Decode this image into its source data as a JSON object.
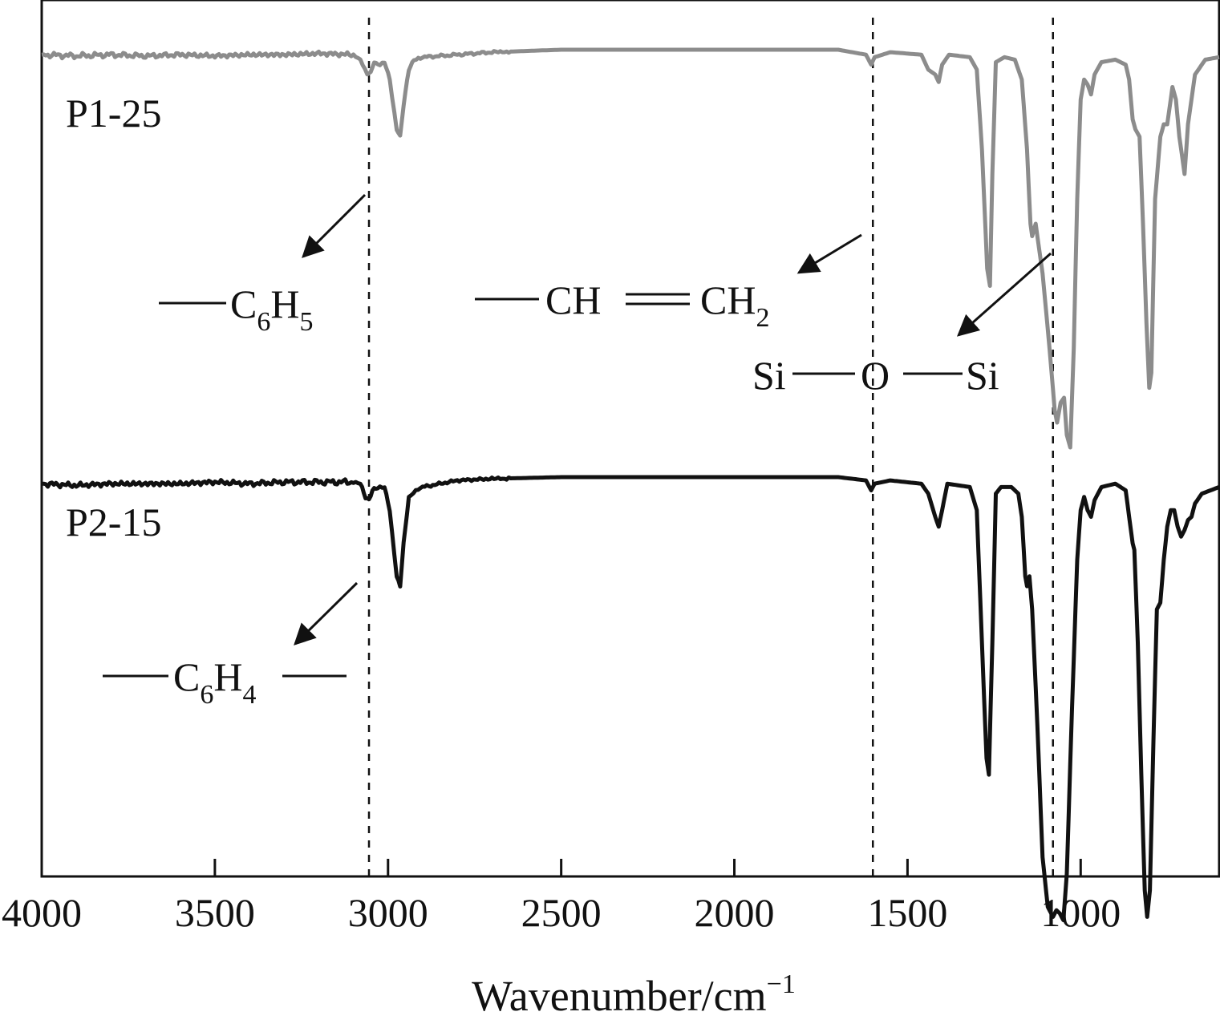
{
  "chart_data": {
    "type": "line",
    "xlabel": "Wavenumber/cm",
    "xlabel_sup": "−1",
    "xlim": [
      4000,
      600
    ],
    "x_reversed": true,
    "x_ticks": [
      4000,
      3500,
      3000,
      2500,
      2000,
      1500,
      1000
    ],
    "x_tick_labels": [
      "4000",
      "3500",
      "3000",
      "2500",
      "2000",
      "1500",
      "1000"
    ],
    "y_ticks_shown": false,
    "grid": false,
    "colors": {
      "P1-25": "#8c8c8c",
      "P2-15": "#111111"
    },
    "reference_lines": [
      3055,
      1600,
      1080
    ],
    "series": [
      {
        "name": "P1-25",
        "offset": 0,
        "points": [
          [
            4000,
            0.02
          ],
          [
            3900,
            0.025
          ],
          [
            3800,
            0.02
          ],
          [
            3700,
            0.025
          ],
          [
            3600,
            0.02
          ],
          [
            3500,
            0.025
          ],
          [
            3400,
            0.02
          ],
          [
            3300,
            0.02
          ],
          [
            3200,
            0.015
          ],
          [
            3100,
            0.02
          ],
          [
            3080,
            0.04
          ],
          [
            3060,
            0.1
          ],
          [
            3050,
            0.09
          ],
          [
            3040,
            0.05
          ],
          [
            3030,
            0.06
          ],
          [
            3010,
            0.05
          ],
          [
            2995,
            0.12
          ],
          [
            2975,
            0.32
          ],
          [
            2965,
            0.35
          ],
          [
            2955,
            0.22
          ],
          [
            2940,
            0.08
          ],
          [
            2925,
            0.04
          ],
          [
            2900,
            0.03
          ],
          [
            2800,
            0.02
          ],
          [
            2700,
            0.01
          ],
          [
            2500,
            0.0
          ],
          [
            2300,
            0.0
          ],
          [
            2100,
            0.0
          ],
          [
            2000,
            0.0
          ],
          [
            1800,
            0.0
          ],
          [
            1700,
            0.0
          ],
          [
            1620,
            0.02
          ],
          [
            1605,
            0.06
          ],
          [
            1595,
            0.03
          ],
          [
            1550,
            0.01
          ],
          [
            1460,
            0.02
          ],
          [
            1440,
            0.08
          ],
          [
            1420,
            0.1
          ],
          [
            1410,
            0.13
          ],
          [
            1400,
            0.06
          ],
          [
            1380,
            0.02
          ],
          [
            1320,
            0.03
          ],
          [
            1300,
            0.08
          ],
          [
            1285,
            0.4
          ],
          [
            1270,
            0.88
          ],
          [
            1262,
            0.95
          ],
          [
            1255,
            0.5
          ],
          [
            1245,
            0.05
          ],
          [
            1220,
            0.03
          ],
          [
            1190,
            0.04
          ],
          [
            1170,
            0.12
          ],
          [
            1155,
            0.4
          ],
          [
            1145,
            0.7
          ],
          [
            1140,
            0.75
          ],
          [
            1130,
            0.7
          ],
          [
            1110,
            0.9
          ],
          [
            1090,
            1.2
          ],
          [
            1075,
            1.45
          ],
          [
            1068,
            1.5
          ],
          [
            1058,
            1.42
          ],
          [
            1048,
            1.4
          ],
          [
            1040,
            1.55
          ],
          [
            1030,
            1.6
          ],
          [
            1020,
            1.2
          ],
          [
            1010,
            0.6
          ],
          [
            1000,
            0.2
          ],
          [
            990,
            0.12
          ],
          [
            980,
            0.14
          ],
          [
            970,
            0.18
          ],
          [
            960,
            0.1
          ],
          [
            940,
            0.05
          ],
          [
            900,
            0.04
          ],
          [
            870,
            0.06
          ],
          [
            860,
            0.12
          ],
          [
            850,
            0.28
          ],
          [
            842,
            0.32
          ],
          [
            830,
            0.35
          ],
          [
            820,
            0.7
          ],
          [
            810,
            1.1
          ],
          [
            802,
            1.36
          ],
          [
            796,
            1.3
          ],
          [
            785,
            0.6
          ],
          [
            770,
            0.35
          ],
          [
            760,
            0.3
          ],
          [
            750,
            0.3
          ],
          [
            745,
            0.25
          ],
          [
            735,
            0.15
          ],
          [
            725,
            0.2
          ],
          [
            715,
            0.35
          ],
          [
            708,
            0.42
          ],
          [
            700,
            0.5
          ],
          [
            690,
            0.3
          ],
          [
            670,
            0.1
          ],
          [
            640,
            0.04
          ],
          [
            600,
            0.03
          ]
        ]
      },
      {
        "name": "P2-15",
        "offset": 0.98,
        "points": [
          [
            4000,
            0.02
          ],
          [
            3900,
            0.025
          ],
          [
            3800,
            0.02
          ],
          [
            3700,
            0.02
          ],
          [
            3600,
            0.02
          ],
          [
            3500,
            0.015
          ],
          [
            3400,
            0.02
          ],
          [
            3300,
            0.015
          ],
          [
            3200,
            0.015
          ],
          [
            3100,
            0.015
          ],
          [
            3080,
            0.02
          ],
          [
            3065,
            0.06
          ],
          [
            3055,
            0.07
          ],
          [
            3045,
            0.04
          ],
          [
            3030,
            0.03
          ],
          [
            3010,
            0.03
          ],
          [
            2995,
            0.1
          ],
          [
            2975,
            0.3
          ],
          [
            2965,
            0.33
          ],
          [
            2955,
            0.2
          ],
          [
            2940,
            0.06
          ],
          [
            2920,
            0.04
          ],
          [
            2900,
            0.03
          ],
          [
            2800,
            0.01
          ],
          [
            2700,
            0.005
          ],
          [
            2500,
            0.0
          ],
          [
            2300,
            0.0
          ],
          [
            2100,
            0.0
          ],
          [
            2000,
            0.0
          ],
          [
            1800,
            0.0
          ],
          [
            1700,
            0.0
          ],
          [
            1620,
            0.01
          ],
          [
            1605,
            0.04
          ],
          [
            1595,
            0.02
          ],
          [
            1550,
            0.01
          ],
          [
            1460,
            0.02
          ],
          [
            1440,
            0.05
          ],
          [
            1420,
            0.12
          ],
          [
            1410,
            0.15
          ],
          [
            1400,
            0.1
          ],
          [
            1385,
            0.02
          ],
          [
            1320,
            0.03
          ],
          [
            1300,
            0.1
          ],
          [
            1285,
            0.5
          ],
          [
            1272,
            0.85
          ],
          [
            1265,
            0.9
          ],
          [
            1255,
            0.5
          ],
          [
            1245,
            0.05
          ],
          [
            1230,
            0.03
          ],
          [
            1200,
            0.03
          ],
          [
            1180,
            0.05
          ],
          [
            1170,
            0.12
          ],
          [
            1160,
            0.3
          ],
          [
            1155,
            0.33
          ],
          [
            1148,
            0.3
          ],
          [
            1140,
            0.4
          ],
          [
            1125,
            0.75
          ],
          [
            1110,
            1.15
          ],
          [
            1095,
            1.3
          ],
          [
            1080,
            1.33
          ],
          [
            1070,
            1.31
          ],
          [
            1060,
            1.32
          ],
          [
            1050,
            1.34
          ],
          [
            1040,
            1.2
          ],
          [
            1025,
            0.7
          ],
          [
            1010,
            0.25
          ],
          [
            1000,
            0.1
          ],
          [
            990,
            0.06
          ],
          [
            980,
            0.1
          ],
          [
            970,
            0.12
          ],
          [
            960,
            0.07
          ],
          [
            940,
            0.03
          ],
          [
            900,
            0.02
          ],
          [
            870,
            0.04
          ],
          [
            860,
            0.12
          ],
          [
            850,
            0.2
          ],
          [
            845,
            0.22
          ],
          [
            835,
            0.5
          ],
          [
            825,
            0.9
          ],
          [
            815,
            1.25
          ],
          [
            808,
            1.33
          ],
          [
            800,
            1.25
          ],
          [
            790,
            0.8
          ],
          [
            780,
            0.4
          ],
          [
            770,
            0.38
          ],
          [
            760,
            0.25
          ],
          [
            750,
            0.15
          ],
          [
            740,
            0.1
          ],
          [
            730,
            0.1
          ],
          [
            720,
            0.15
          ],
          [
            710,
            0.18
          ],
          [
            700,
            0.16
          ],
          [
            690,
            0.13
          ],
          [
            680,
            0.12
          ],
          [
            670,
            0.08
          ],
          [
            650,
            0.05
          ],
          [
            600,
            0.03
          ]
        ]
      }
    ]
  },
  "series_labels": {
    "p1": "P1-25",
    "p2": "P2-15"
  },
  "annotations": {
    "c6h5": {
      "main": "C",
      "sub1": "6",
      "mid": "H",
      "sub2": "5"
    },
    "vinyl_ch": "CH",
    "vinyl_ch2": {
      "main": "CH",
      "sub": "2"
    },
    "siloxane": {
      "si1": "Si",
      "o": "O",
      "si2": "Si"
    },
    "c6h4": {
      "main": "C",
      "sub1": "6",
      "mid": "H",
      "sub2": "4"
    }
  }
}
